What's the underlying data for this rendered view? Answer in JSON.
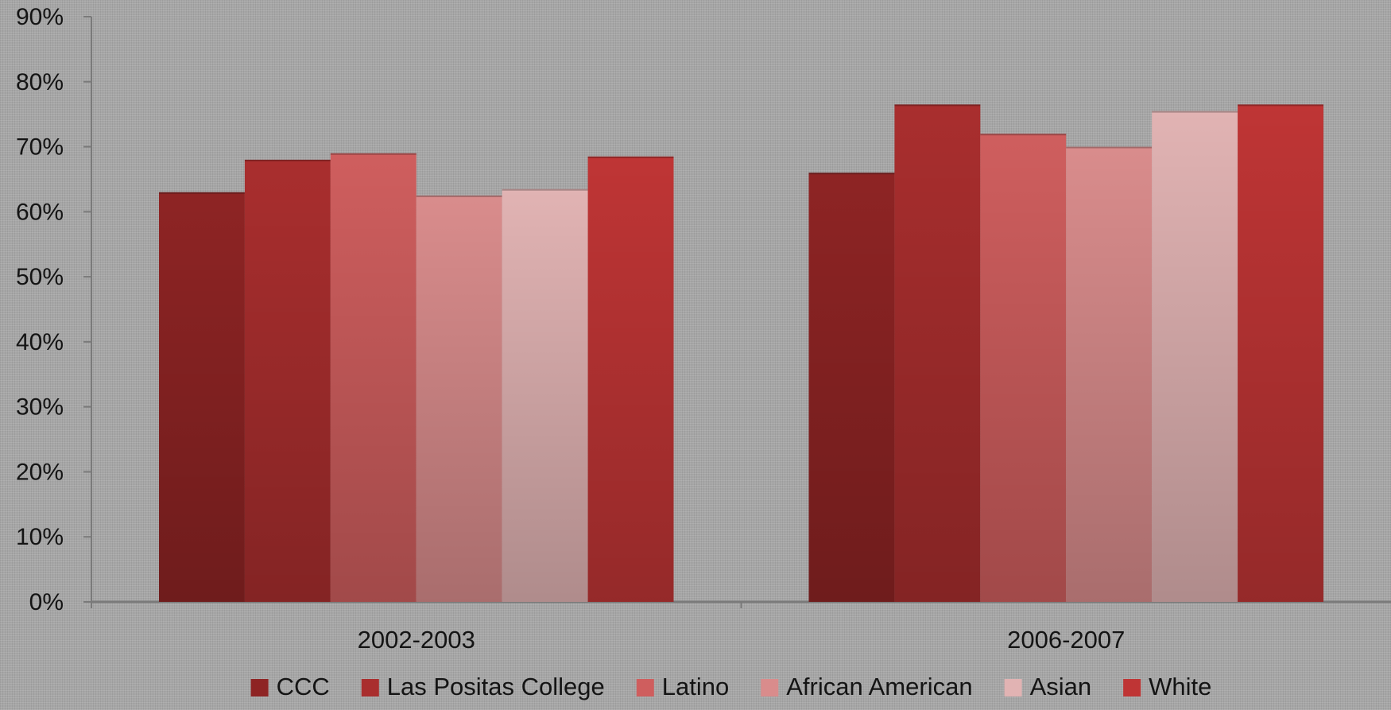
{
  "chart_data": {
    "type": "bar",
    "categories": [
      "2002-2003",
      "2006-2007"
    ],
    "series": [
      {
        "name": "CCC",
        "values": [
          63,
          66
        ],
        "color": "#8e2424"
      },
      {
        "name": "Las Positas  College",
        "values": [
          68,
          76.5
        ],
        "color": "#a92e2e"
      },
      {
        "name": "Latino",
        "values": [
          69,
          72
        ],
        "color": "#cf5e5e"
      },
      {
        "name": "African American",
        "values": [
          62.5,
          70
        ],
        "color": "#d98c8c"
      },
      {
        "name": "Asian",
        "values": [
          63.5,
          75.5
        ],
        "color": "#e1b3b3"
      },
      {
        "name": "White",
        "values": [
          68.5,
          76.5
        ],
        "color": "#bf3535"
      }
    ],
    "ylim": [
      0,
      90
    ],
    "yticks": [
      "0%",
      "10%",
      "20%",
      "30%",
      "40%",
      "50%",
      "60%",
      "70%",
      "80%",
      "90%"
    ],
    "title": "",
    "xlabel": "",
    "ylabel": "",
    "grid": false,
    "legend": "bottom"
  }
}
